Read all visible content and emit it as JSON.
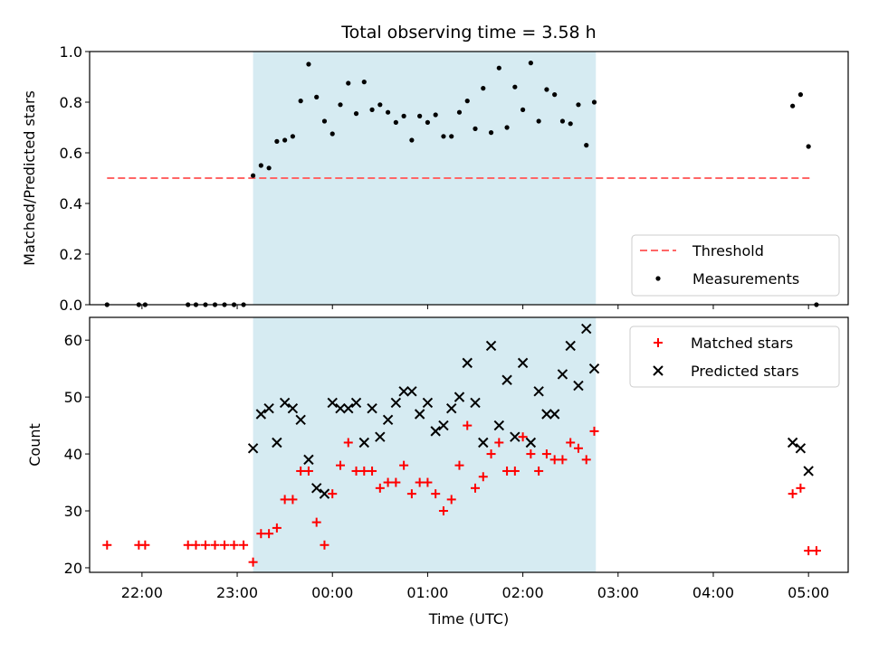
{
  "chart_data": {
    "title": "Total observing time = 3.58 h",
    "xlabel": "Time (UTC)",
    "x_ticks": [
      "22:00",
      "23:00",
      "00:00",
      "01:00",
      "02:00",
      "03:00",
      "04:00",
      "05:00"
    ],
    "xlim": [
      "2000-01-01T21:27",
      "2000-01-02T05:25"
    ],
    "x_tick_times": [
      "2000-01-01T22:00",
      "2000-01-01T23:00",
      "2000-01-02T00:00",
      "2000-01-02T01:00",
      "2000-01-02T02:00",
      "2000-01-02T03:00",
      "2000-01-02T04:00",
      "2000-01-02T05:00"
    ],
    "observing_window": [
      "2000-01-01T23:10",
      "2000-01-02T02:46"
    ],
    "colors": {
      "window": "#add8e6",
      "threshold": "#ff6666",
      "measurements": "#000000",
      "matched": "#ff0000",
      "predicted": "#000000"
    },
    "panels": [
      {
        "type": "scatter",
        "ylabel": "Matched/Predicted stars",
        "ylim": [
          0,
          1
        ],
        "y_ticks": [
          "0.0",
          "0.2",
          "0.4",
          "0.6",
          "0.8",
          "1.0"
        ],
        "y_tick_values": [
          0,
          0.2,
          0.4,
          0.6,
          0.8,
          1.0
        ],
        "legend_position": "lower-right",
        "threshold": {
          "name": "Threshold",
          "value": 0.5,
          "x_range": [
            "2000-01-01T21:38",
            "2000-01-02T05:02"
          ]
        },
        "series": [
          {
            "name": "Measurements",
            "points": [
              [
                "2000-01-01T21:38",
                0.0
              ],
              [
                "2000-01-01T21:58",
                0.0
              ],
              [
                "2000-01-01T22:02",
                0.0
              ],
              [
                "2000-01-01T22:29",
                0.0
              ],
              [
                "2000-01-01T22:34",
                0.0
              ],
              [
                "2000-01-01T22:40",
                0.0
              ],
              [
                "2000-01-01T22:46",
                0.0
              ],
              [
                "2000-01-01T22:52",
                0.0
              ],
              [
                "2000-01-01T22:58",
                0.0
              ],
              [
                "2000-01-01T23:04",
                0.0
              ],
              [
                "2000-01-01T23:10",
                0.51
              ],
              [
                "2000-01-01T23:15",
                0.55
              ],
              [
                "2000-01-01T23:20",
                0.54
              ],
              [
                "2000-01-01T23:25",
                0.645
              ],
              [
                "2000-01-01T23:30",
                0.65
              ],
              [
                "2000-01-01T23:35",
                0.665
              ],
              [
                "2000-01-01T23:40",
                0.805
              ],
              [
                "2000-01-01T23:45",
                0.95
              ],
              [
                "2000-01-01T23:50",
                0.82
              ],
              [
                "2000-01-01T23:55",
                0.725
              ],
              [
                "2000-01-02T00:00",
                0.675
              ],
              [
                "2000-01-02T00:05",
                0.79
              ],
              [
                "2000-01-02T00:10",
                0.875
              ],
              [
                "2000-01-02T00:15",
                0.755
              ],
              [
                "2000-01-02T00:20",
                0.88
              ],
              [
                "2000-01-02T00:25",
                0.77
              ],
              [
                "2000-01-02T00:30",
                0.79
              ],
              [
                "2000-01-02T00:35",
                0.76
              ],
              [
                "2000-01-02T00:40",
                0.72
              ],
              [
                "2000-01-02T00:45",
                0.745
              ],
              [
                "2000-01-02T00:50",
                0.65
              ],
              [
                "2000-01-02T00:55",
                0.745
              ],
              [
                "2000-01-02T01:00",
                0.72
              ],
              [
                "2000-01-02T01:05",
                0.75
              ],
              [
                "2000-01-02T01:10",
                0.665
              ],
              [
                "2000-01-02T01:15",
                0.665
              ],
              [
                "2000-01-02T01:20",
                0.76
              ],
              [
                "2000-01-02T01:25",
                0.805
              ],
              [
                "2000-01-02T01:30",
                0.695
              ],
              [
                "2000-01-02T01:35",
                0.855
              ],
              [
                "2000-01-02T01:40",
                0.68
              ],
              [
                "2000-01-02T01:45",
                0.935
              ],
              [
                "2000-01-02T01:50",
                0.7
              ],
              [
                "2000-01-02T01:55",
                0.86
              ],
              [
                "2000-01-02T02:00",
                0.77
              ],
              [
                "2000-01-02T02:05",
                0.955
              ],
              [
                "2000-01-02T02:10",
                0.725
              ],
              [
                "2000-01-02T02:15",
                0.85
              ],
              [
                "2000-01-02T02:20",
                0.83
              ],
              [
                "2000-01-02T02:25",
                0.725
              ],
              [
                "2000-01-02T02:30",
                0.715
              ],
              [
                "2000-01-02T02:35",
                0.79
              ],
              [
                "2000-01-02T02:40",
                0.63
              ],
              [
                "2000-01-02T02:45",
                0.8
              ],
              [
                "2000-01-02T04:50",
                0.785
              ],
              [
                "2000-01-02T04:55",
                0.83
              ],
              [
                "2000-01-02T05:00",
                0.625
              ],
              [
                "2000-01-02T05:05",
                0.0
              ]
            ]
          }
        ]
      },
      {
        "type": "scatter",
        "ylabel": "Count",
        "ylim": [
          19.2,
          64
        ],
        "y_ticks": [
          "20",
          "30",
          "40",
          "50",
          "60"
        ],
        "y_tick_values": [
          20,
          30,
          40,
          50,
          60
        ],
        "legend_position": "top-right",
        "series": [
          {
            "name": "Matched stars",
            "marker": "plus",
            "points": [
              [
                "2000-01-01T21:38",
                24
              ],
              [
                "2000-01-01T21:58",
                24
              ],
              [
                "2000-01-01T22:02",
                24
              ],
              [
                "2000-01-01T22:29",
                24
              ],
              [
                "2000-01-01T22:34",
                24
              ],
              [
                "2000-01-01T22:40",
                24
              ],
              [
                "2000-01-01T22:46",
                24
              ],
              [
                "2000-01-01T22:52",
                24
              ],
              [
                "2000-01-01T22:58",
                24
              ],
              [
                "2000-01-01T23:04",
                24
              ],
              [
                "2000-01-01T23:10",
                21
              ],
              [
                "2000-01-01T23:15",
                26
              ],
              [
                "2000-01-01T23:20",
                26
              ],
              [
                "2000-01-01T23:25",
                27
              ],
              [
                "2000-01-01T23:30",
                32
              ],
              [
                "2000-01-01T23:35",
                32
              ],
              [
                "2000-01-01T23:40",
                37
              ],
              [
                "2000-01-01T23:45",
                37
              ],
              [
                "2000-01-01T23:50",
                28
              ],
              [
                "2000-01-01T23:55",
                24
              ],
              [
                "2000-01-02T00:00",
                33
              ],
              [
                "2000-01-02T00:05",
                38
              ],
              [
                "2000-01-02T00:10",
                42
              ],
              [
                "2000-01-02T00:15",
                37
              ],
              [
                "2000-01-02T00:20",
                37
              ],
              [
                "2000-01-02T00:25",
                37
              ],
              [
                "2000-01-02T00:30",
                34
              ],
              [
                "2000-01-02T00:35",
                35
              ],
              [
                "2000-01-02T00:40",
                35
              ],
              [
                "2000-01-02T00:45",
                38
              ],
              [
                "2000-01-02T00:50",
                33
              ],
              [
                "2000-01-02T00:55",
                35
              ],
              [
                "2000-01-02T01:00",
                35
              ],
              [
                "2000-01-02T01:05",
                33
              ],
              [
                "2000-01-02T01:10",
                30
              ],
              [
                "2000-01-02T01:15",
                32
              ],
              [
                "2000-01-02T01:20",
                38
              ],
              [
                "2000-01-02T01:25",
                45
              ],
              [
                "2000-01-02T01:30",
                34
              ],
              [
                "2000-01-02T01:35",
                36
              ],
              [
                "2000-01-02T01:40",
                40
              ],
              [
                "2000-01-02T01:45",
                42
              ],
              [
                "2000-01-02T01:50",
                37
              ],
              [
                "2000-01-02T01:55",
                37
              ],
              [
                "2000-01-02T02:00",
                43
              ],
              [
                "2000-01-02T02:05",
                40
              ],
              [
                "2000-01-02T02:10",
                37
              ],
              [
                "2000-01-02T02:15",
                40
              ],
              [
                "2000-01-02T02:20",
                39
              ],
              [
                "2000-01-02T02:25",
                39
              ],
              [
                "2000-01-02T02:30",
                42
              ],
              [
                "2000-01-02T02:35",
                41
              ],
              [
                "2000-01-02T02:40",
                39
              ],
              [
                "2000-01-02T02:45",
                44
              ],
              [
                "2000-01-02T04:50",
                33
              ],
              [
                "2000-01-02T04:55",
                34
              ],
              [
                "2000-01-02T05:00",
                23
              ],
              [
                "2000-01-02T05:05",
                23
              ]
            ]
          },
          {
            "name": "Predicted stars",
            "marker": "x",
            "points": [
              [
                "2000-01-01T23:10",
                41
              ],
              [
                "2000-01-01T23:15",
                47
              ],
              [
                "2000-01-01T23:20",
                48
              ],
              [
                "2000-01-01T23:25",
                42
              ],
              [
                "2000-01-01T23:30",
                49
              ],
              [
                "2000-01-01T23:35",
                48
              ],
              [
                "2000-01-01T23:40",
                46
              ],
              [
                "2000-01-01T23:45",
                39
              ],
              [
                "2000-01-01T23:50",
                34
              ],
              [
                "2000-01-01T23:55",
                33
              ],
              [
                "2000-01-02T00:00",
                49
              ],
              [
                "2000-01-02T00:05",
                48
              ],
              [
                "2000-01-02T00:10",
                48
              ],
              [
                "2000-01-02T00:15",
                49
              ],
              [
                "2000-01-02T00:20",
                42
              ],
              [
                "2000-01-02T00:25",
                48
              ],
              [
                "2000-01-02T00:30",
                43
              ],
              [
                "2000-01-02T00:35",
                46
              ],
              [
                "2000-01-02T00:40",
                49
              ],
              [
                "2000-01-02T00:45",
                51
              ],
              [
                "2000-01-02T00:50",
                51
              ],
              [
                "2000-01-02T00:55",
                47
              ],
              [
                "2000-01-02T01:00",
                49
              ],
              [
                "2000-01-02T01:05",
                44
              ],
              [
                "2000-01-02T01:10",
                45
              ],
              [
                "2000-01-02T01:15",
                48
              ],
              [
                "2000-01-02T01:20",
                50
              ],
              [
                "2000-01-02T01:25",
                56
              ],
              [
                "2000-01-02T01:30",
                49
              ],
              [
                "2000-01-02T01:35",
                42
              ],
              [
                "2000-01-02T01:40",
                59
              ],
              [
                "2000-01-02T01:45",
                45
              ],
              [
                "2000-01-02T01:50",
                53
              ],
              [
                "2000-01-02T01:55",
                43
              ],
              [
                "2000-01-02T02:00",
                56
              ],
              [
                "2000-01-02T02:05",
                42
              ],
              [
                "2000-01-02T02:10",
                51
              ],
              [
                "2000-01-02T02:15",
                47
              ],
              [
                "2000-01-02T02:20",
                47
              ],
              [
                "2000-01-02T02:25",
                54
              ],
              [
                "2000-01-02T02:30",
                59
              ],
              [
                "2000-01-02T02:35",
                52
              ],
              [
                "2000-01-02T02:40",
                62
              ],
              [
                "2000-01-02T02:45",
                55
              ],
              [
                "2000-01-02T04:50",
                42
              ],
              [
                "2000-01-02T04:55",
                41
              ],
              [
                "2000-01-02T05:00",
                37
              ]
            ]
          }
        ]
      }
    ]
  }
}
